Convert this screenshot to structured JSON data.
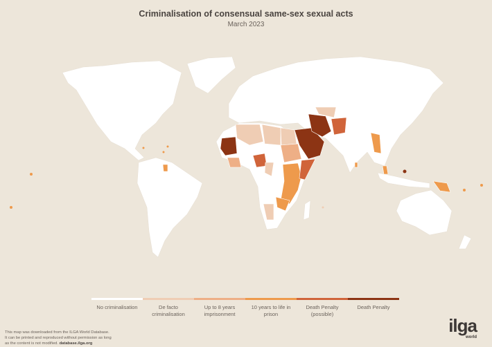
{
  "header": {
    "title": "Criminalisation of consensual same-sex sexual acts",
    "subtitle": "March 2023"
  },
  "colors": {
    "background": "#ede6da",
    "land": "#ffffff",
    "no_criminalisation": "#ffffff",
    "de_facto": "#efcdb4",
    "up_to_8": "#eeaf86",
    "ten_to_life": "#ee9a4c",
    "death_possible": "#d0643a",
    "death": "#8c3414"
  },
  "legend": [
    {
      "label": "No criminalisation",
      "color": "#ffffff"
    },
    {
      "label": "De facto criminalisation",
      "color": "#efcdb4"
    },
    {
      "label": "Up to 8 years imprisonment",
      "color": "#eeaf86"
    },
    {
      "label": "10 years to life in prison",
      "color": "#ee9a4c"
    },
    {
      "label": "Death Penalty (possible)",
      "color": "#d0643a"
    },
    {
      "label": "Death Penalty",
      "color": "#8c3414"
    }
  ],
  "footer": {
    "line1": "This map was downloaded from the ILGA World Database.",
    "line2": "It can be printed and reproduced without permission as long",
    "line3": "as the content is not modified.",
    "link": "database.ilga.org"
  },
  "logo": {
    "text": "ilga",
    "sub": "world"
  }
}
